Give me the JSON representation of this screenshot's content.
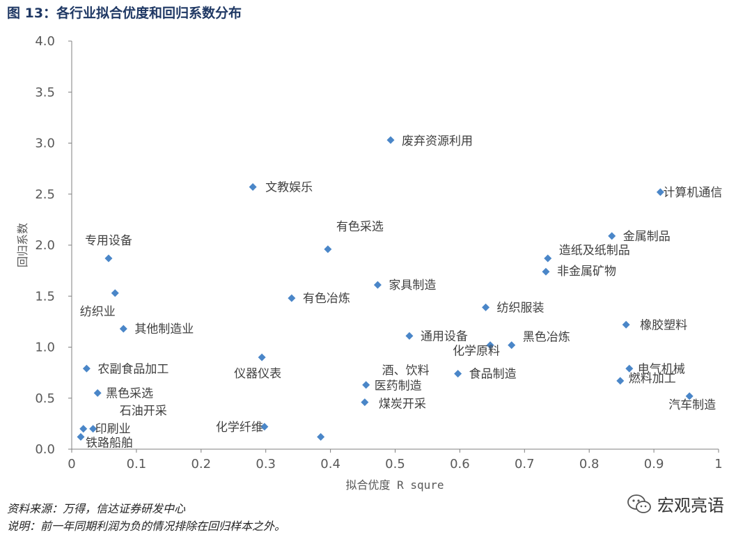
{
  "figure": {
    "title": "图 13：各行业拟合优度和回归系数分布",
    "source": "资料来源：万得，信达证券研发中心",
    "note": "说明：前一年同期利润为负的情况排除在回归样本之外。",
    "watermark": "宏观亮语",
    "watermark_icon": "wechat-icon"
  },
  "chart_data": {
    "type": "scatter",
    "xlabel": "拟合优度 R squre",
    "ylabel": "回归系数",
    "xlim": [
      0,
      1
    ],
    "ylim": [
      0,
      4.0
    ],
    "x_ticks": [
      "0",
      "0.1",
      "0.2",
      "0.3",
      "0.4",
      "0.5",
      "0.6",
      "0.7",
      "0.8",
      "0.9",
      "1"
    ],
    "y_ticks": [
      "0.0",
      "0.5",
      "1.0",
      "1.5",
      "2.0",
      "2.5",
      "3.0",
      "3.5",
      "4.0"
    ],
    "marker_color": "#4a86c8",
    "points": [
      {
        "label": "废弃资源利用",
        "x": 0.493,
        "y": 3.03
      },
      {
        "label": "文教娱乐",
        "x": 0.28,
        "y": 2.57
      },
      {
        "label": "计算机通信",
        "x": 0.91,
        "y": 2.52
      },
      {
        "label": "金属制品",
        "x": 0.835,
        "y": 2.09
      },
      {
        "label": "有色采选",
        "x": 0.396,
        "y": 1.96
      },
      {
        "label": "专用设备",
        "x": 0.057,
        "y": 1.87
      },
      {
        "label": "造纸及纸制品",
        "x": 0.736,
        "y": 1.87
      },
      {
        "label": "非金属矿物",
        "x": 0.733,
        "y": 1.74
      },
      {
        "label": "家具制造",
        "x": 0.473,
        "y": 1.61
      },
      {
        "label": "纺织业",
        "x": 0.067,
        "y": 1.53
      },
      {
        "label": "有色冶炼",
        "x": 0.34,
        "y": 1.48
      },
      {
        "label": "纺织服装",
        "x": 0.64,
        "y": 1.39
      },
      {
        "label": "橡胶塑料",
        "x": 0.857,
        "y": 1.22
      },
      {
        "label": "其他制造业",
        "x": 0.08,
        "y": 1.18
      },
      {
        "label": "通用设备",
        "x": 0.522,
        "y": 1.11
      },
      {
        "label": "化学原料",
        "x": 0.647,
        "y": 1.02
      },
      {
        "label": "黑色冶炼",
        "x": 0.68,
        "y": 1.02
      },
      {
        "label": "仪器仪表",
        "x": 0.294,
        "y": 0.9
      },
      {
        "label": "农副食品加工",
        "x": 0.023,
        "y": 0.79
      },
      {
        "label": "电气机械",
        "x": 0.862,
        "y": 0.79
      },
      {
        "label": "食品制造",
        "x": 0.597,
        "y": 0.74
      },
      {
        "label": "燃料加工",
        "x": 0.848,
        "y": 0.67
      },
      {
        "label": "医药制造",
        "x": 0.455,
        "y": 0.63
      },
      {
        "label": "黑色采选",
        "x": 0.04,
        "y": 0.55
      },
      {
        "label": "汽车制造",
        "x": 0.955,
        "y": 0.52
      },
      {
        "label": "煤炭开采",
        "x": 0.453,
        "y": 0.46
      },
      {
        "label": "化学纤维",
        "x": 0.298,
        "y": 0.22
      },
      {
        "label": "印刷业",
        "x": 0.033,
        "y": 0.2
      },
      {
        "label": "石油开采",
        "x": 0.018,
        "y": 0.2
      },
      {
        "label": "铁路船舶",
        "x": 0.014,
        "y": 0.12
      },
      {
        "label": "酒、饮料",
        "x": 0.385,
        "y": 0.12
      }
    ]
  }
}
